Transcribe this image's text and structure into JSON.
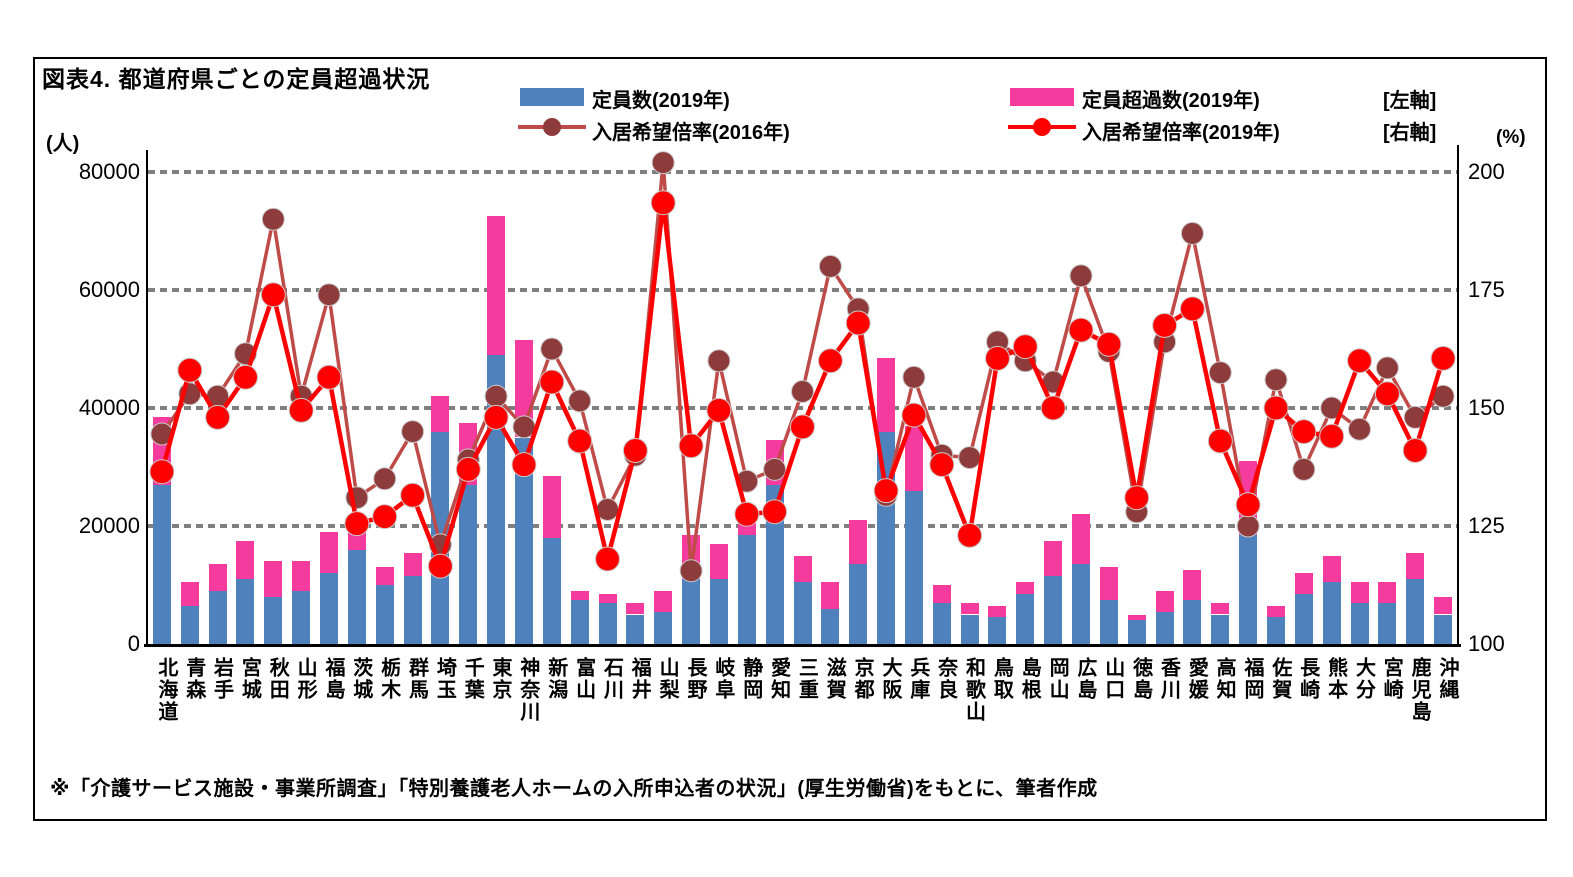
{
  "figure": {
    "title": "図表4. 都道府県ごとの定員超過状況",
    "left_axis_unit": "(人)",
    "right_axis_unit": "(%)",
    "footnote": "※「介護サービス施設・事業所調査」「特別養護老人ホームの入所申込者の状況」(厚生労働省)をもとに、筆者作成"
  },
  "legend": {
    "capacity_label": "定員数(2019年)",
    "excess_label": "定員超過数(2019年)",
    "ratio2016_label": "入居希望倍率(2016年)",
    "ratio2019_label": "入居希望倍率(2019年)",
    "left_axis_tag": "[左軸]",
    "right_axis_tag": "[右軸]"
  },
  "colors": {
    "bar_capacity": "#4F81BD",
    "bar_excess": "#F53C9E",
    "line_2016": "#BE4B48",
    "marker_2016": "#8E3B3B",
    "line_2019": "#FF0000",
    "marker_2019": "#FF0000",
    "grid": "#7F7F7F"
  },
  "chart_data": {
    "type": "bar",
    "subtype": "stacked bars with two line series on secondary axis",
    "title": "図表4. 都道府県ごとの定員超過状況",
    "categories": [
      "北海道",
      "青森",
      "岩手",
      "宮城",
      "秋田",
      "山形",
      "福島",
      "茨城",
      "栃木",
      "群馬",
      "埼玉",
      "千葉",
      "東京",
      "神奈川",
      "新潟",
      "富山",
      "石川",
      "福井",
      "山梨",
      "長野",
      "岐阜",
      "静岡",
      "愛知",
      "三重",
      "滋賀",
      "京都",
      "大阪",
      "兵庫",
      "奈良",
      "和歌山",
      "鳥取",
      "島根",
      "岡山",
      "広島",
      "山口",
      "徳島",
      "香川",
      "愛媛",
      "高知",
      "福岡",
      "佐賀",
      "長崎",
      "熊本",
      "大分",
      "宮崎",
      "鹿児島",
      "沖縄"
    ],
    "series": [
      {
        "name": "定員数(2019年)",
        "type": "bar",
        "stack": "s1",
        "axis": "left",
        "values": [
          27000,
          6500,
          9000,
          11000,
          8000,
          9000,
          12000,
          16000,
          10000,
          11500,
          36000,
          27000,
          49000,
          35000,
          18000,
          7500,
          7000,
          5000,
          5500,
          11000,
          11000,
          18500,
          27000,
          10500,
          6000,
          13500,
          36000,
          26000,
          7000,
          5000,
          4500,
          8500,
          11500,
          13500,
          7500,
          4000,
          5500,
          7500,
          5000,
          18500,
          4500,
          8500,
          10500,
          7000,
          7000,
          11000,
          5000
        ]
      },
      {
        "name": "定員超過数(2019年)",
        "type": "bar",
        "stack": "s1",
        "axis": "left",
        "values": [
          11500,
          4000,
          4500,
          6500,
          6000,
          5000,
          7000,
          3000,
          3000,
          4000,
          6000,
          10500,
          23500,
          16500,
          10500,
          1500,
          1500,
          2000,
          3500,
          7500,
          6000,
          5000,
          7500,
          4500,
          4500,
          7500,
          12500,
          11000,
          3000,
          2000,
          2000,
          2000,
          6000,
          8500,
          5500,
          1000,
          3500,
          5000,
          2000,
          12500,
          2000,
          3500,
          4500,
          3500,
          3500,
          4500,
          3000
        ]
      },
      {
        "name": "入居希望倍率(2016年)",
        "type": "line",
        "axis": "right",
        "values": [
          144.5,
          153,
          152.5,
          161.5,
          190,
          152.5,
          174,
          131,
          135,
          145,
          121,
          139,
          152.5,
          146,
          162.5,
          151.5,
          128.5,
          140,
          202,
          115.5,
          160,
          134.5,
          137,
          153.5,
          180,
          171,
          131.5,
          156.5,
          140,
          139.5,
          164,
          160,
          155.5,
          178,
          162,
          128,
          164,
          187,
          157.5,
          125,
          156,
          137,
          150,
          145.5,
          158.5,
          148,
          152.5
        ]
      },
      {
        "name": "入居希望倍率(2019年)",
        "type": "line",
        "axis": "right",
        "values": [
          136.5,
          158,
          148,
          156.5,
          174,
          149.5,
          156.5,
          125.5,
          127,
          131.5,
          116.5,
          137,
          148,
          138,
          155.5,
          143,
          118,
          141,
          193.5,
          142,
          149.5,
          127.5,
          128,
          146,
          160,
          168,
          132.5,
          148.5,
          138,
          123,
          160.5,
          163,
          150,
          166.5,
          163.5,
          131,
          167.5,
          171,
          143,
          129.5,
          150,
          145,
          144,
          160,
          153,
          141,
          160.5
        ]
      }
    ],
    "left_axis": {
      "unit": "(人)",
      "range": [
        0,
        80000
      ],
      "ticks": [
        0,
        20000,
        40000,
        60000,
        80000
      ]
    },
    "right_axis": {
      "unit": "(%)",
      "range": [
        100,
        200
      ],
      "ticks": [
        100,
        125,
        150,
        175,
        200
      ]
    },
    "grid": "horizontal dashed at left-axis ticks",
    "legend_position": "top"
  }
}
